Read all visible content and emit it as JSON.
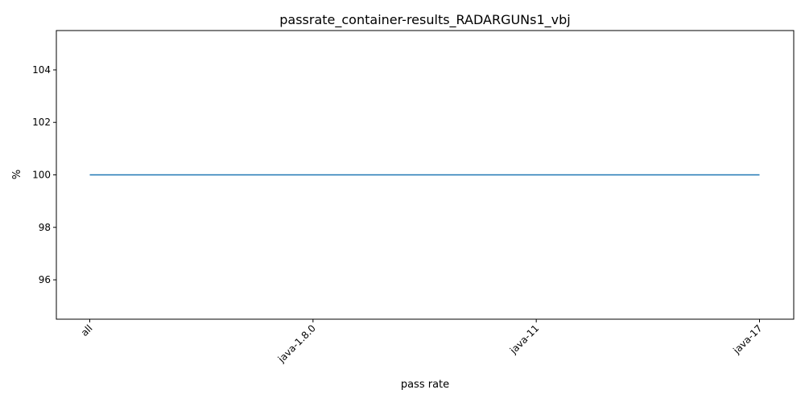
{
  "chart_data": {
    "type": "line",
    "title": "passrate_container-results_RADARGUNs1_vbj",
    "xlabel": "pass rate",
    "ylabel": "%",
    "categories": [
      "all",
      "java-1.8.0",
      "java-11",
      "java-17"
    ],
    "series": [
      {
        "values": [
          100,
          100,
          100,
          100
        ],
        "color": "#1f77b4"
      }
    ],
    "ylim": [
      94.5,
      105.5
    ],
    "yticks": [
      96,
      98,
      100,
      102,
      104
    ],
    "x_tick_rotation_deg": 45,
    "grid": false,
    "legend": "none"
  }
}
